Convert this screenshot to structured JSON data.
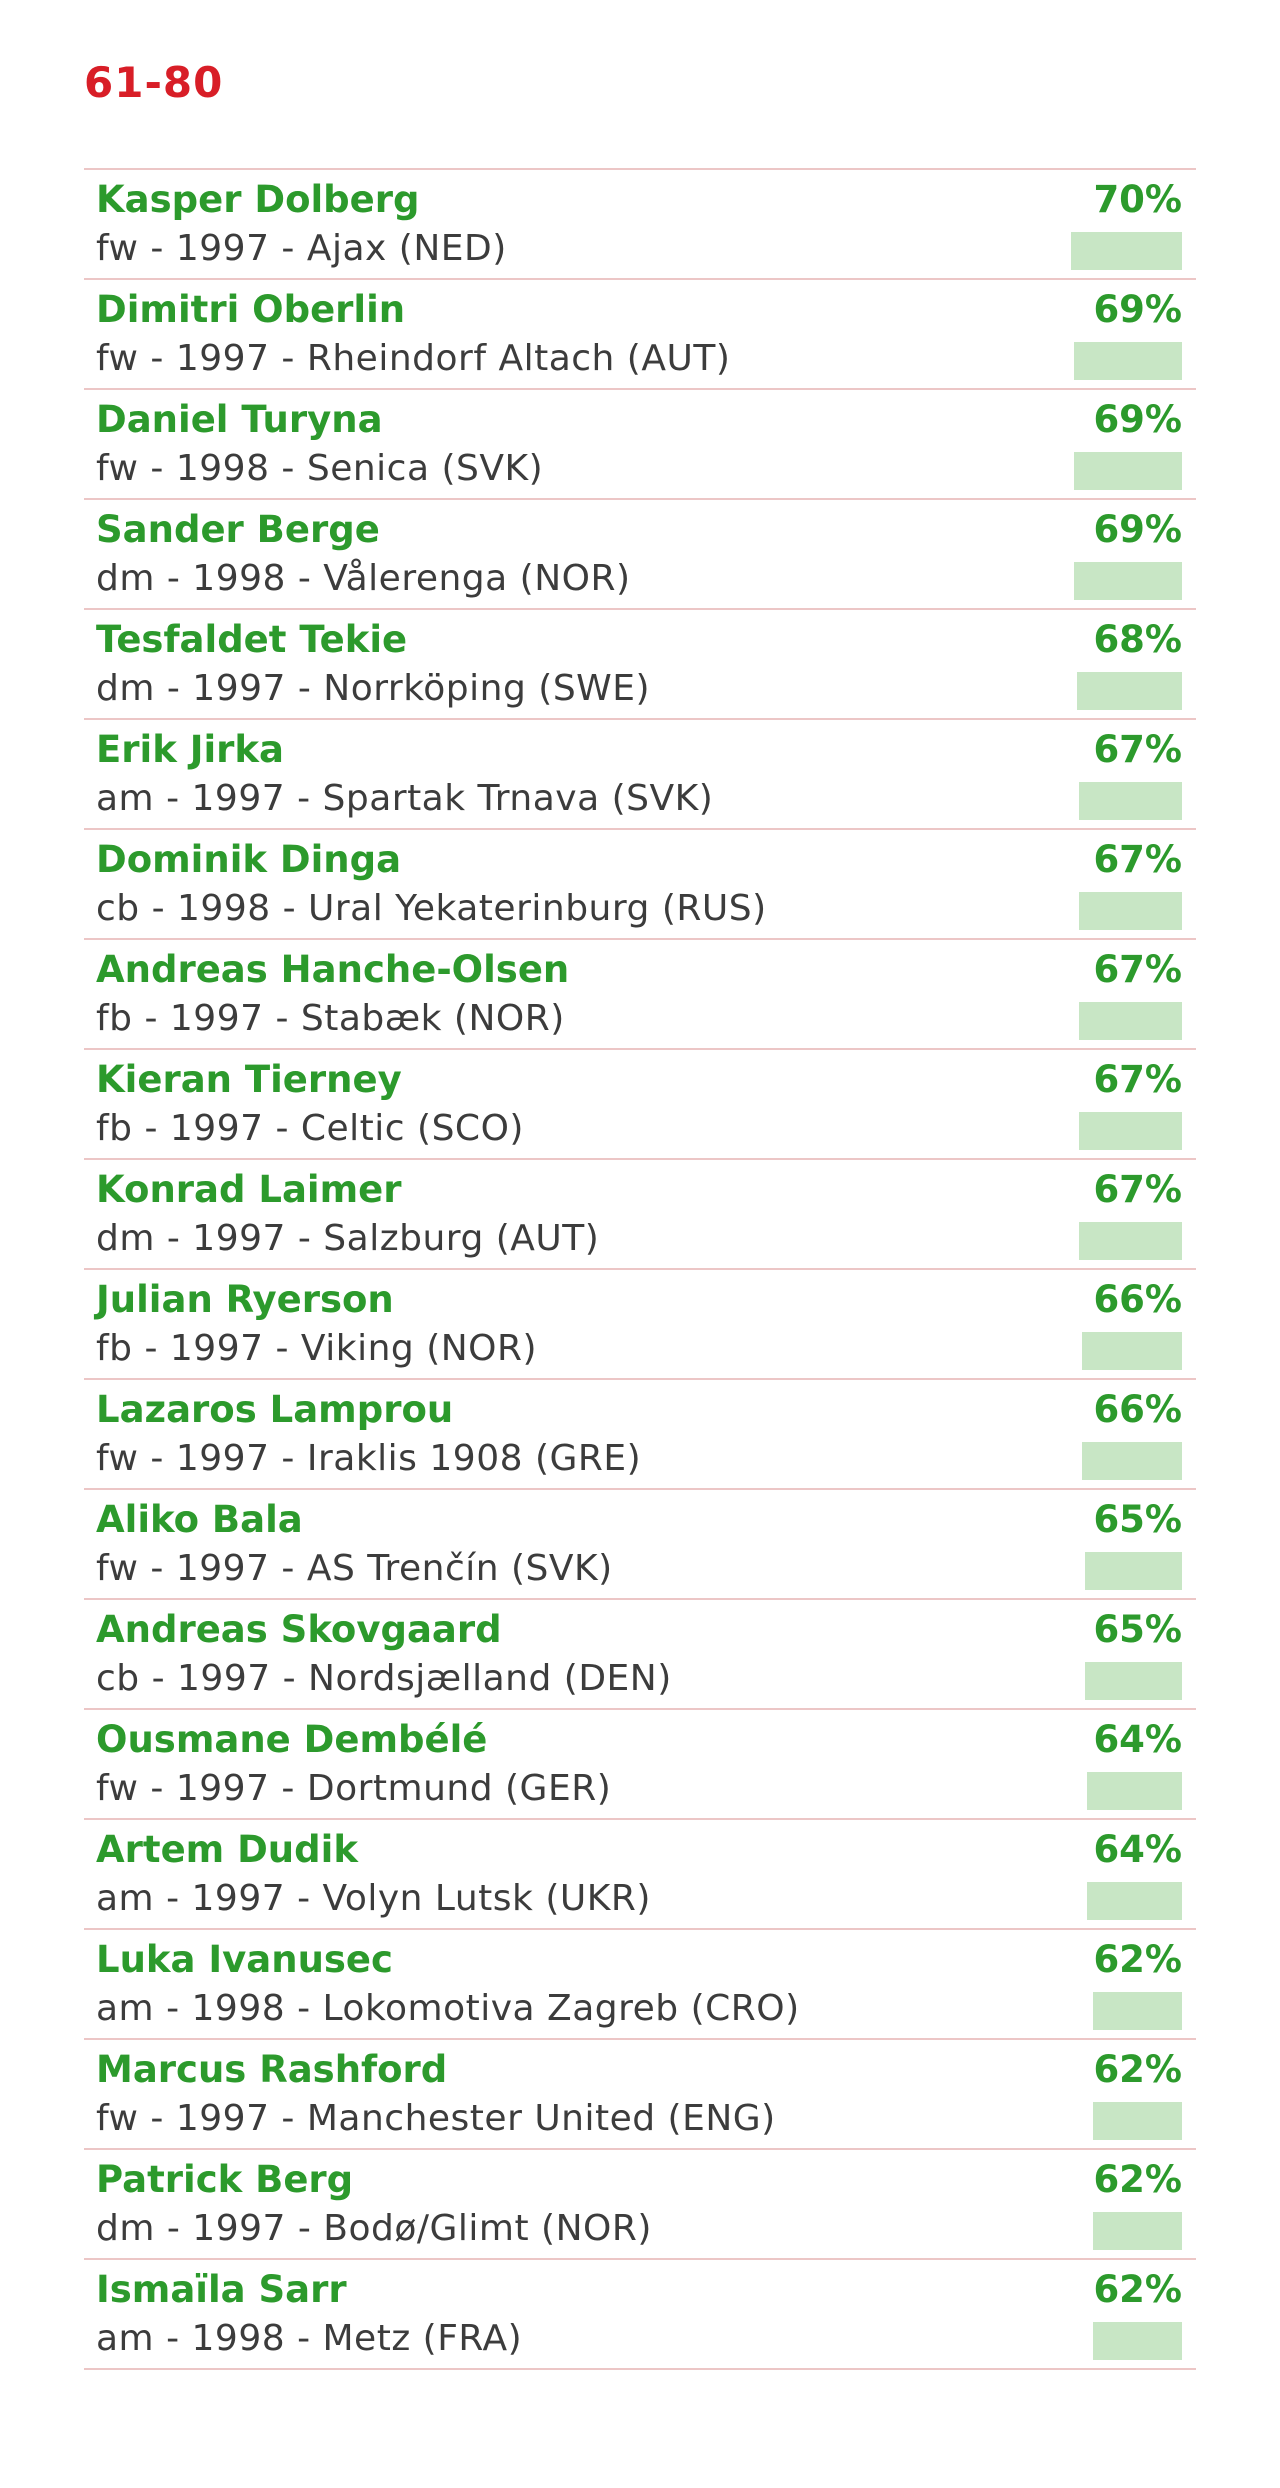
{
  "header": {
    "title": "61-80"
  },
  "colors": {
    "title": "#d81e27",
    "name": "#2c9a2c",
    "bar": "#c8e6c5",
    "divider": "#ecc6c6"
  },
  "chart_data": {
    "type": "bar",
    "title": "61-80",
    "categories": [
      "Kasper Dolberg",
      "Dimitri Oberlin",
      "Daniel Turyna",
      "Sander Berge",
      "Tesfaldet Tekie",
      "Erik Jirka",
      "Dominik Dinga",
      "Andreas Hanche-Olsen",
      "Kieran Tierney",
      "Konrad Laimer",
      "Julian Ryerson",
      "Lazaros Lamprou",
      "Aliko Bala",
      "Andreas Skovgaard",
      "Ousmane Dembélé",
      "Artem Dudik",
      "Luka Ivanusec",
      "Marcus Rashford",
      "Patrick Berg",
      "Ismaïla Sarr"
    ],
    "values": [
      70,
      69,
      69,
      69,
      68,
      67,
      67,
      67,
      67,
      67,
      66,
      66,
      65,
      65,
      64,
      64,
      62,
      62,
      62,
      62
    ],
    "unit": "%",
    "players": [
      {
        "name": "Kasper Dolberg",
        "detail": "fw - 1997 - Ajax (NED)",
        "pct_label": "70%",
        "value": 70
      },
      {
        "name": "Dimitri Oberlin",
        "detail": "fw - 1997 - Rheindorf Altach (AUT)",
        "pct_label": "69%",
        "value": 69
      },
      {
        "name": "Daniel Turyna",
        "detail": "fw - 1998 - Senica (SVK)",
        "pct_label": "69%",
        "value": 69
      },
      {
        "name": "Sander Berge",
        "detail": "dm - 1998 - Vålerenga (NOR)",
        "pct_label": "69%",
        "value": 69
      },
      {
        "name": "Tesfaldet Tekie",
        "detail": "dm - 1997 - Norrköping (SWE)",
        "pct_label": "68%",
        "value": 68
      },
      {
        "name": "Erik Jirka",
        "detail": "am - 1997 - Spartak Trnava (SVK)",
        "pct_label": "67%",
        "value": 67
      },
      {
        "name": "Dominik Dinga",
        "detail": "cb - 1998 - Ural Yekaterinburg (RUS)",
        "pct_label": "67%",
        "value": 67
      },
      {
        "name": "Andreas Hanche-Olsen",
        "detail": "fb - 1997 - Stabæk (NOR)",
        "pct_label": "67%",
        "value": 67
      },
      {
        "name": "Kieran Tierney",
        "detail": "fb - 1997 - Celtic (SCO)",
        "pct_label": "67%",
        "value": 67
      },
      {
        "name": "Konrad Laimer",
        "detail": "dm - 1997 - Salzburg (AUT)",
        "pct_label": "67%",
        "value": 67
      },
      {
        "name": "Julian Ryerson",
        "detail": "fb - 1997 - Viking (NOR)",
        "pct_label": "66%",
        "value": 66
      },
      {
        "name": "Lazaros Lamprou",
        "detail": "fw - 1997 - Iraklis 1908 (GRE)",
        "pct_label": "66%",
        "value": 66
      },
      {
        "name": "Aliko Bala",
        "detail": "fw - 1997 - AS Trenčín (SVK)",
        "pct_label": "65%",
        "value": 65
      },
      {
        "name": "Andreas Skovgaard",
        "detail": "cb - 1997 - Nordsjælland (DEN)",
        "pct_label": "65%",
        "value": 65
      },
      {
        "name": "Ousmane Dembélé",
        "detail": "fw - 1997 - Dortmund (GER)",
        "pct_label": "64%",
        "value": 64
      },
      {
        "name": "Artem Dudik",
        "detail": "am - 1997 - Volyn Lutsk (UKR)",
        "pct_label": "64%",
        "value": 64
      },
      {
        "name": "Luka Ivanusec",
        "detail": "am - 1998 - Lokomotiva Zagreb (CRO)",
        "pct_label": "62%",
        "value": 62
      },
      {
        "name": "Marcus Rashford",
        "detail": "fw - 1997 - Manchester United (ENG)",
        "pct_label": "62%",
        "value": 62
      },
      {
        "name": "Patrick Berg",
        "detail": "dm - 1997 - Bodø/Glimt (NOR)",
        "pct_label": "62%",
        "value": 62
      },
      {
        "name": "Ismaïla Sarr",
        "detail": "am - 1998 - Metz (FRA)",
        "pct_label": "62%",
        "value": 62
      }
    ]
  }
}
